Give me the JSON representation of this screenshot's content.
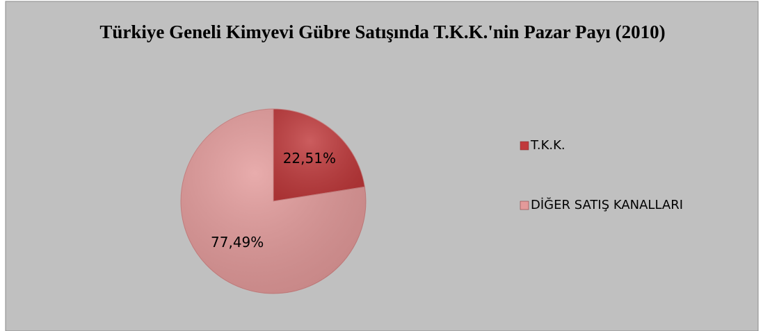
{
  "chart_data": {
    "type": "pie",
    "title": "Türkiye Geneli Kimyevi Gübre Satışında T.K.K.'nin Pazar Payı (2010)",
    "categories": [
      "T.K.K.",
      "DİĞER SATIŞ KANALLARI"
    ],
    "values": [
      22.51,
      77.49
    ],
    "value_labels": [
      "22,51%",
      "77,49%"
    ],
    "colors": [
      "#c0393b",
      "#e39a9a"
    ],
    "legend": "right"
  }
}
